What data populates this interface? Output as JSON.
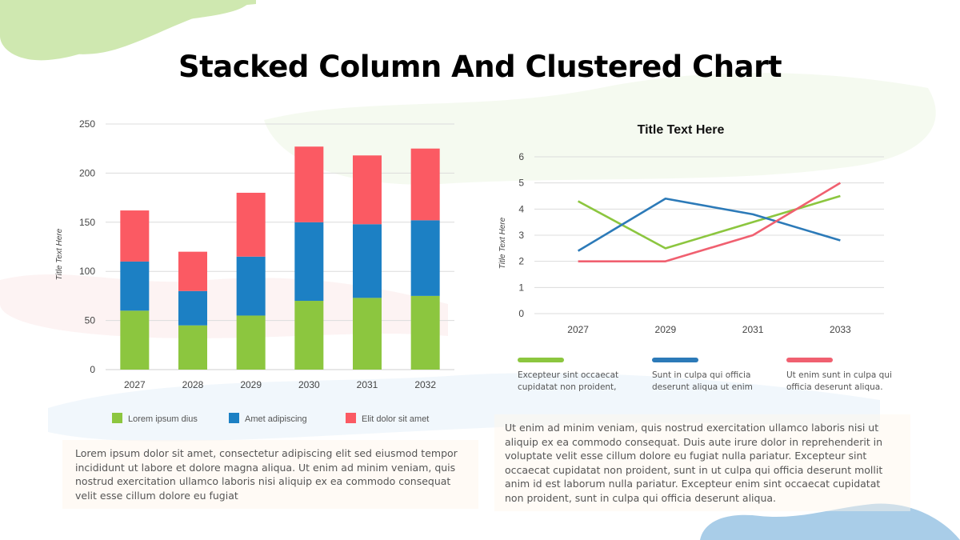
{
  "title": "Stacked Column And Clustered Chart",
  "colors": {
    "green": "#8cc63f",
    "blue": "#1c80c4",
    "red": "#fb5a63",
    "line_green": "#8cc63f",
    "line_blue": "#2c7ab8",
    "line_red": "#f06070",
    "blob_green": "#cfe8b0",
    "blob_blue": "#a9cde8"
  },
  "chart_data": [
    {
      "type": "bar",
      "stacked": true,
      "categories": [
        "2027",
        "2028",
        "2029",
        "2030",
        "2031",
        "2032"
      ],
      "series": [
        {
          "name": "Lorem ipsum dius",
          "values": [
            60,
            45,
            55,
            70,
            73,
            75
          ]
        },
        {
          "name": "Amet adipiscing",
          "values": [
            50,
            35,
            60,
            80,
            75,
            77
          ]
        },
        {
          "name": "Elit dolor sit amet",
          "values": [
            52,
            40,
            65,
            77,
            70,
            73
          ]
        }
      ],
      "ylabel": "Title Text Here",
      "ylim": [
        0,
        250
      ],
      "yticks": [
        0,
        50,
        100,
        150,
        200,
        250
      ],
      "grid": true,
      "legend": "bottom"
    },
    {
      "type": "line",
      "title": "Title Text Here",
      "x": [
        "2027",
        "2029",
        "2031",
        "2033"
      ],
      "series": [
        {
          "name": "Excepteur sint occaecat cupidatat non proident,",
          "values": [
            4.3,
            2.5,
            3.5,
            4.5
          ]
        },
        {
          "name": "Sunt in culpa qui officia deserunt aliqua ut enim",
          "values": [
            2.4,
            4.4,
            3.8,
            2.8
          ]
        },
        {
          "name": "Ut enim sunt in culpa qui officia deserunt aliqua.",
          "values": [
            2,
            2,
            3,
            5
          ]
        }
      ],
      "ylabel": "Title Text Here",
      "ylim": [
        0,
        6
      ],
      "yticks": [
        0,
        1,
        2,
        3,
        4,
        5,
        6
      ],
      "grid": true,
      "legend": "bottom"
    }
  ],
  "line_legend": [
    {
      "line1": "Excepteur sint occaecat",
      "line2": "cupidatat non proident,"
    },
    {
      "line1": "Sunt in culpa qui officia",
      "line2": "deserunt aliqua ut enim"
    },
    {
      "line1": "Ut enim sunt in culpa qui",
      "line2": "officia deserunt aliqua."
    }
  ],
  "left_paragraph": "Lorem ipsum dolor sit amet, consectetur adipiscing elit sed eiusmod tempor incididunt ut labore et dolore magna aliqua. Ut enim ad minim veniam, quis nostrud exercitation ullamco laboris nisi aliquip ex ea commodo consequat velit esse cillum dolore eu fugiat",
  "right_paragraph": "Ut enim ad minim veniam, quis nostrud exercitation ullamco laboris nisi ut aliquip ex ea commodo consequat. Duis aute irure dolor in reprehenderit in voluptate velit esse cillum dolore eu fugiat nulla pariatur. Excepteur sint occaecat cupidatat non proident, sunt in ut culpa qui officia deserunt mollit anim id est laborum nulla pariatur. Excepteur enim sint occaecat cupidatat non proident, sunt in culpa qui officia deserunt aliqua."
}
